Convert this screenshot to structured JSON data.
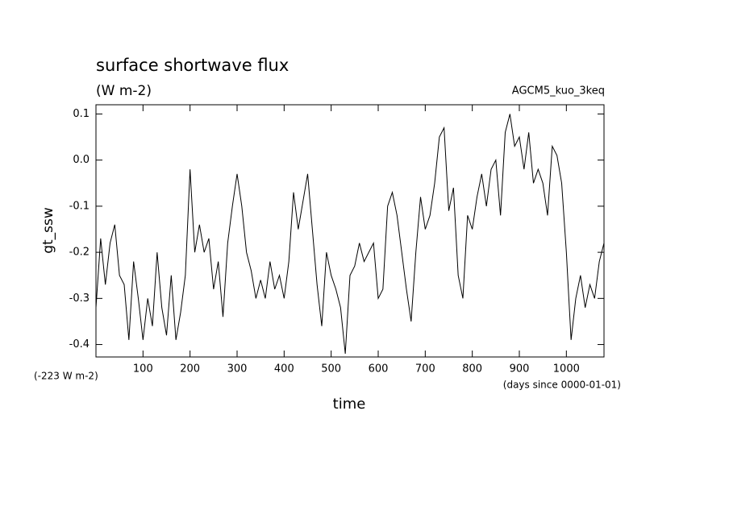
{
  "chart_data": {
    "type": "line",
    "title": "surface shortwave flux",
    "subtitle": "(W m-2)",
    "annotation_right": "AGCM5_kuo_3keq",
    "offset_note": "(-223 W m-2)",
    "x_units": "(days since 0000-01-01)",
    "xlabel": "time",
    "ylabel": "gt_ssw",
    "xlim": [
      0,
      1080
    ],
    "ylim": [
      -0.427,
      0.12
    ],
    "xticks": [
      100,
      200,
      300,
      400,
      500,
      600,
      700,
      800,
      900,
      1000
    ],
    "yticks": [
      0.1,
      {
        "value": 0,
        "label": "0.0"
      },
      -0.1,
      -0.2,
      -0.3,
      -0.4
    ],
    "x": [
      0,
      10,
      20,
      30,
      40,
      50,
      60,
      70,
      80,
      90,
      100,
      110,
      120,
      130,
      140,
      150,
      160,
      170,
      180,
      190,
      200,
      210,
      220,
      230,
      240,
      250,
      260,
      270,
      280,
      290,
      300,
      310,
      320,
      330,
      340,
      350,
      360,
      370,
      380,
      390,
      400,
      410,
      420,
      430,
      440,
      450,
      460,
      470,
      480,
      490,
      500,
      510,
      520,
      530,
      540,
      550,
      560,
      570,
      580,
      590,
      600,
      610,
      620,
      630,
      640,
      650,
      660,
      670,
      680,
      690,
      700,
      710,
      720,
      730,
      740,
      750,
      760,
      770,
      780,
      790,
      800,
      810,
      820,
      830,
      840,
      850,
      860,
      870,
      880,
      890,
      900,
      910,
      920,
      930,
      940,
      950,
      960,
      970,
      980,
      990,
      1000,
      1010,
      1020,
      1030,
      1040,
      1050,
      1060,
      1070,
      1080
    ],
    "series": [
      {
        "color": "#000000",
        "values": [
          -0.32,
          -0.17,
          -0.27,
          -0.18,
          -0.14,
          -0.25,
          -0.27,
          -0.39,
          -0.22,
          -0.3,
          -0.39,
          -0.3,
          -0.36,
          -0.2,
          -0.32,
          -0.38,
          -0.25,
          -0.39,
          -0.33,
          -0.25,
          -0.02,
          -0.2,
          -0.14,
          -0.2,
          -0.17,
          -0.28,
          -0.22,
          -0.34,
          -0.18,
          -0.1,
          -0.03,
          -0.1,
          -0.2,
          -0.24,
          -0.3,
          -0.26,
          -0.3,
          -0.22,
          -0.28,
          -0.25,
          -0.3,
          -0.22,
          -0.07,
          -0.15,
          -0.09,
          -0.03,
          -0.15,
          -0.27,
          -0.36,
          -0.2,
          -0.25,
          -0.28,
          -0.32,
          -0.42,
          -0.25,
          -0.23,
          -0.18,
          -0.22,
          -0.2,
          -0.18,
          -0.3,
          -0.28,
          -0.1,
          -0.07,
          -0.12,
          -0.2,
          -0.28,
          -0.35,
          -0.2,
          -0.08,
          -0.15,
          -0.12,
          -0.05,
          0.05,
          0.07,
          -0.11,
          -0.06,
          -0.25,
          -0.3,
          -0.12,
          -0.15,
          -0.08,
          -0.03,
          -0.1,
          -0.02,
          0.0,
          -0.12,
          0.06,
          0.1,
          0.03,
          0.05,
          -0.02,
          0.06,
          -0.05,
          -0.02,
          -0.05,
          -0.12,
          0.03,
          0.01,
          -0.05,
          -0.2,
          -0.39,
          -0.3,
          -0.25,
          -0.32,
          -0.27,
          -0.3,
          -0.22,
          -0.18
        ]
      }
    ]
  }
}
